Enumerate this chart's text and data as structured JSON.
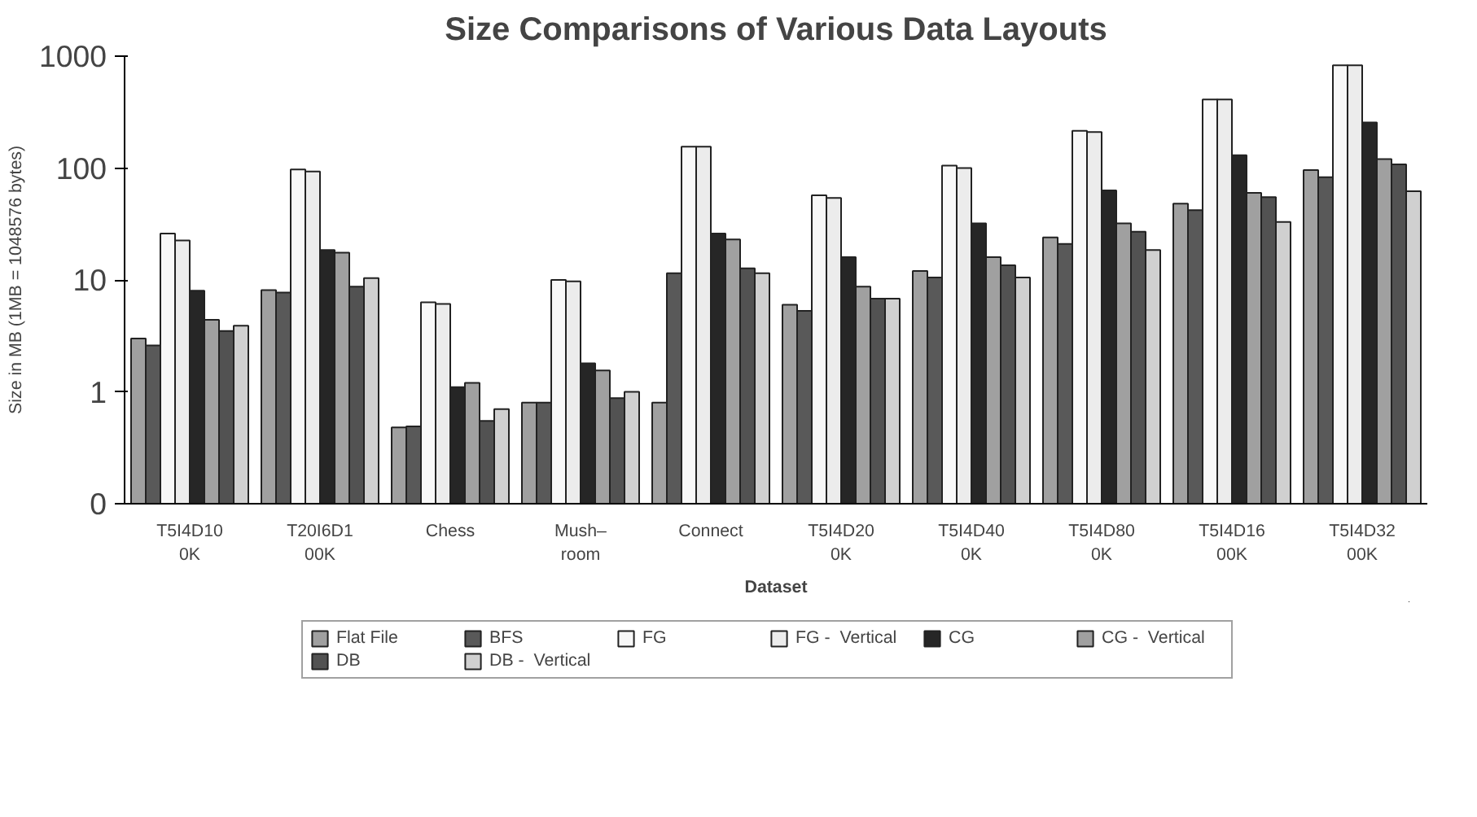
{
  "chart_data": {
    "type": "bar",
    "title": "Size Comparisons of Various Data Layouts",
    "xlabel": "Dataset",
    "ylabel": "Size in MB (1MB = 1048576 bytes)",
    "categories": [
      "T5I4D10\n0K",
      "T20I6D1\n00K",
      "Chess",
      "Mush–\nroom",
      "Connect",
      "T5I4D20\n0K",
      "T5I4D40\n0K",
      "T5I4D80\n0K",
      "T5I4D16\n00K",
      "T5I4D32\n00K"
    ],
    "series": [
      {
        "name": "Flat File",
        "color": "#a0a0a0",
        "values": [
          3.0,
          8.1,
          0.48,
          0.8,
          0.8,
          6,
          12,
          24,
          48,
          96
        ]
      },
      {
        "name": "BFS",
        "color": "#595959",
        "values": [
          2.6,
          7.7,
          0.49,
          0.8,
          11.5,
          5.3,
          10.5,
          21,
          42,
          83
        ]
      },
      {
        "name": "FG",
        "color": "#f8f8f8",
        "values": [
          26,
          97,
          6.3,
          10,
          155,
          57,
          105,
          215,
          410,
          830
        ]
      },
      {
        "name": "FG -  Vertical",
        "color": "#ececec",
        "values": [
          22.5,
          93,
          6.1,
          9.7,
          155,
          54,
          100,
          210,
          410,
          830
        ]
      },
      {
        "name": "CG",
        "color": "#262626",
        "values": [
          8,
          18.5,
          1.1,
          1.8,
          26,
          16,
          32,
          63,
          130,
          255
        ]
      },
      {
        "name": "CG -  Vertical",
        "color": "#a0a0a0",
        "values": [
          4.4,
          17.5,
          1.2,
          1.55,
          23,
          8.7,
          16,
          32,
          60,
          120
        ]
      },
      {
        "name": "DB",
        "color": "#525252",
        "values": [
          3.5,
          8.7,
          0.55,
          0.88,
          12.7,
          6.8,
          13.5,
          27,
          55,
          108
        ]
      },
      {
        "name": "DB -  Vertical",
        "color": "#d0d0d0",
        "values": [
          3.9,
          10.4,
          0.7,
          1.0,
          11.5,
          6.8,
          10.5,
          18.5,
          33,
          62
        ]
      }
    ],
    "log": true,
    "ylim": [
      0.1,
      1000
    ],
    "yticks": [
      {
        "value": 0.1,
        "label": "0"
      },
      1,
      10,
      100,
      1000
    ],
    "grid": false,
    "legend": "bottom"
  }
}
